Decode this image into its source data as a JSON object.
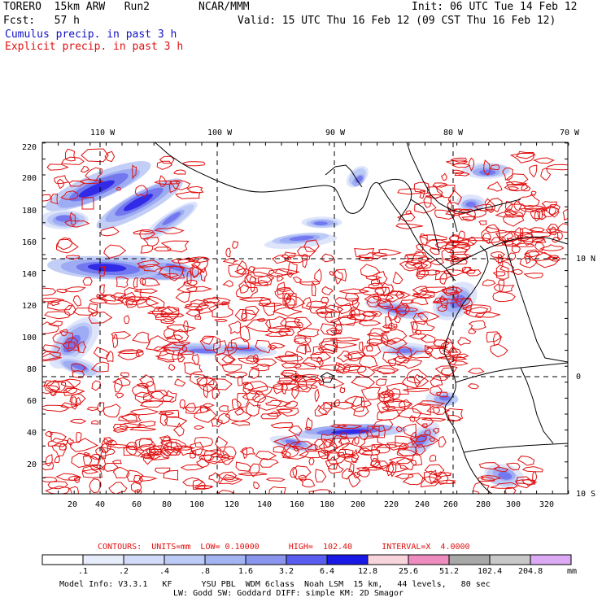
{
  "header": {
    "model": "TORERO  15km ARW   Run2",
    "center": "NCAR/MMM",
    "init": "Init: 06 UTC Tue 14 Feb 12",
    "fcst": "Fcst:   57 h",
    "valid": "Valid: 15 UTC Thu 16 Feb 12 (09 CST Thu 16 Feb 12)",
    "line_cumulus": "Cumulus precip. in past 3 h",
    "line_explicit": "Explicit precip. in past 3 h"
  },
  "map": {
    "lon_labels": [
      "110 W",
      "100 W",
      "90 W",
      "80 W",
      "70 W"
    ],
    "lat_labels": [
      "10 N",
      "0",
      "10 S"
    ],
    "y_ticks": [
      "220",
      "200",
      "180",
      "160",
      "140",
      "120",
      "100",
      "80",
      "60",
      "40",
      "20"
    ],
    "x_ticks": [
      "20",
      "40",
      "60",
      "80",
      "100",
      "120",
      "140",
      "160",
      "180",
      "200",
      "220",
      "240",
      "260",
      "280",
      "300",
      "320"
    ],
    "boxed_labels": [
      "4"
    ],
    "colors": {
      "contour": "#e01010",
      "coast": "#000000",
      "grid": "#000000"
    }
  },
  "footer": {
    "contours": "CONTOURS:  UNITS=mm  LOW= 0.10000      HIGH=  102.40      INTERVAL=X  4.0000",
    "legend_values": [
      ".1",
      ".2",
      ".4",
      ".8",
      "1.6",
      "3.2",
      "6.4",
      "12.8",
      "25.6",
      "51.2",
      "102.4",
      "204.8"
    ],
    "legend_unit": "mm",
    "legend_colors": [
      "#ffffff",
      "#e6ecfa",
      "#d2dcf8",
      "#bccaf6",
      "#a2b4f2",
      "#8a96ee",
      "#5a5ef0",
      "#1a18e6",
      "#f8d4dc",
      "#ee8cc0",
      "#a8a8a8",
      "#c8c8c8",
      "#dcaaf4"
    ],
    "model_info": "Model Info: V3.3.1   KF      YSU PBL  WDM 6class  Noah LSM  15 km,   44 levels,   80 sec",
    "model_info2": "LW: Godd SW: Goddard DIFF: simple KM: 2D Smagor"
  }
}
